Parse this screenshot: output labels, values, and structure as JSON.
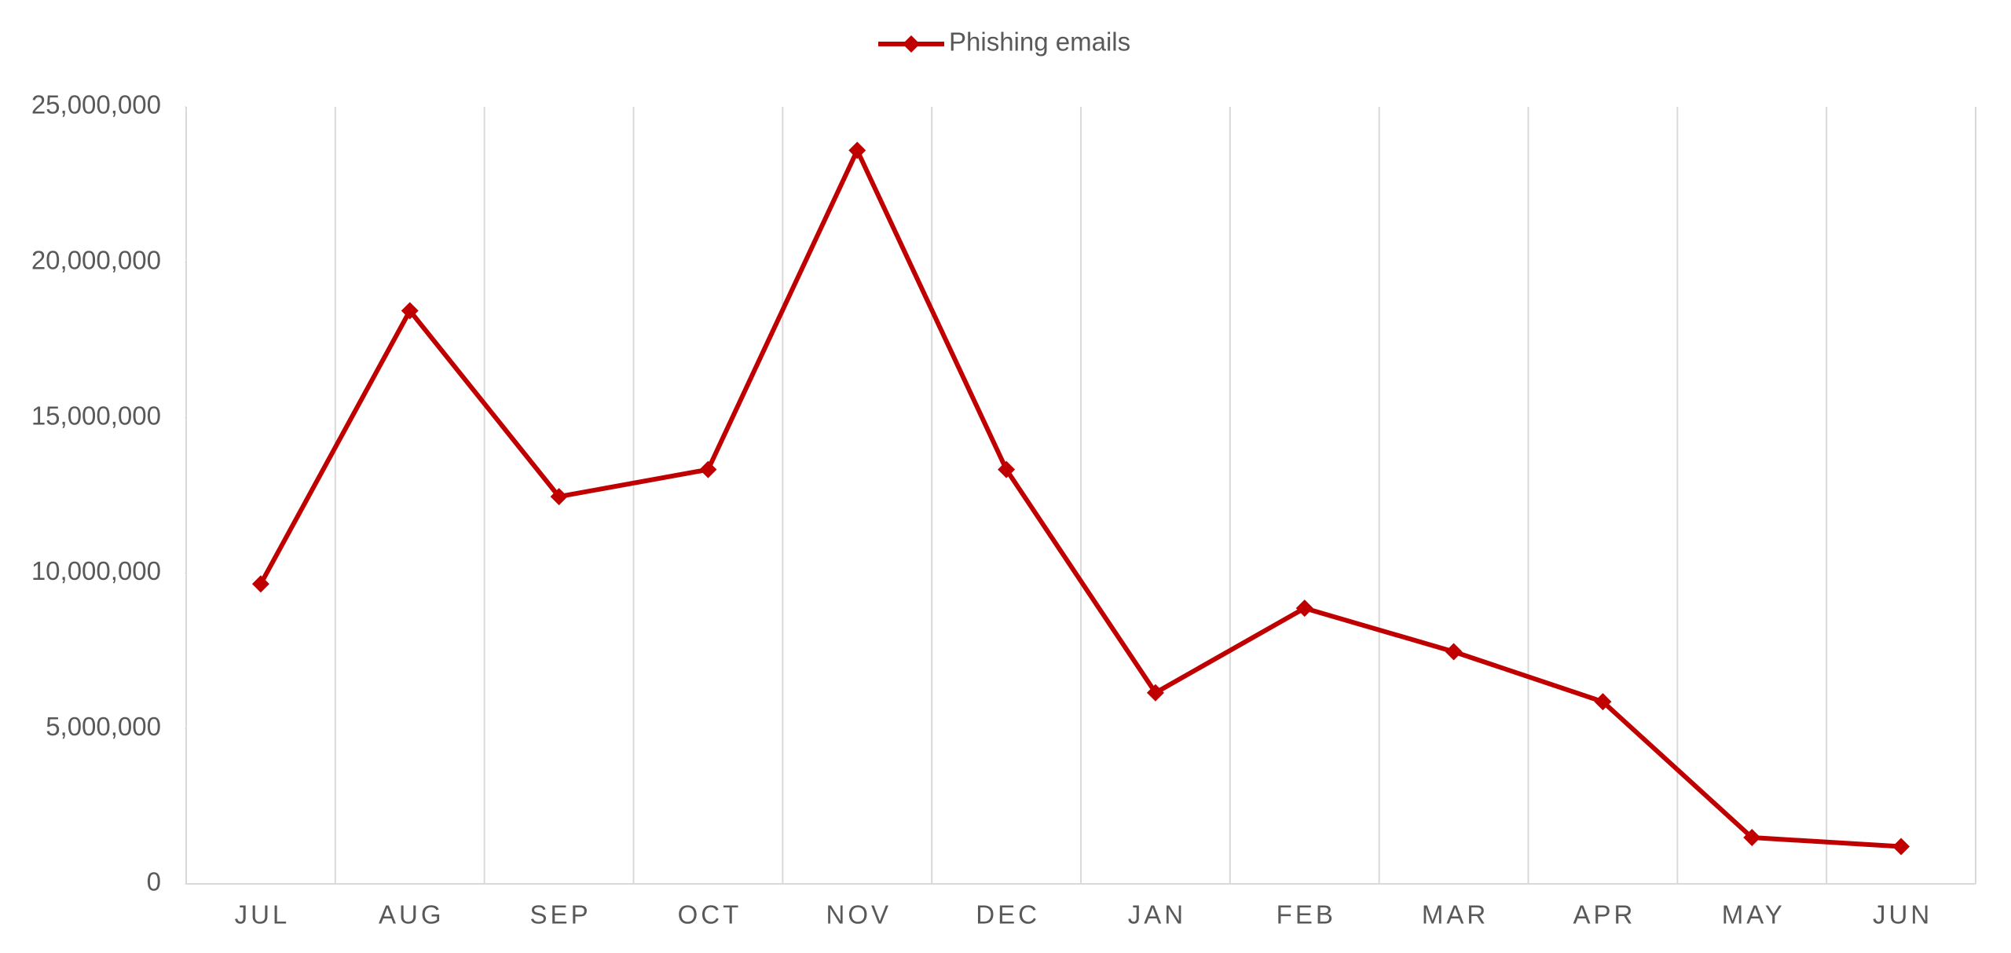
{
  "chart_data": {
    "type": "line",
    "categories": [
      "JUL",
      "AUG",
      "SEP",
      "OCT",
      "NOV",
      "DEC",
      "JAN",
      "FEB",
      "MAR",
      "APR",
      "MAY",
      "JUN"
    ],
    "series": [
      {
        "name": "Phishing emails",
        "color": "#c00000",
        "values": [
          9650000,
          18440000,
          12460000,
          13330000,
          23600000,
          13330000,
          6150000,
          8870000,
          7470000,
          5860000,
          1490000,
          1200000
        ]
      }
    ],
    "ylim": [
      0,
      25000000
    ],
    "yticks": [
      {
        "value": 0,
        "label": "0"
      },
      {
        "value": 5000000,
        "label": "5,000,000"
      },
      {
        "value": 10000000,
        "label": "10,000,000"
      },
      {
        "value": 15000000,
        "label": "15,000,000"
      },
      {
        "value": 20000000,
        "label": "20,000,000"
      },
      {
        "value": 25000000,
        "label": "25,000,000"
      }
    ],
    "grid": "vertical",
    "legend": "top"
  }
}
